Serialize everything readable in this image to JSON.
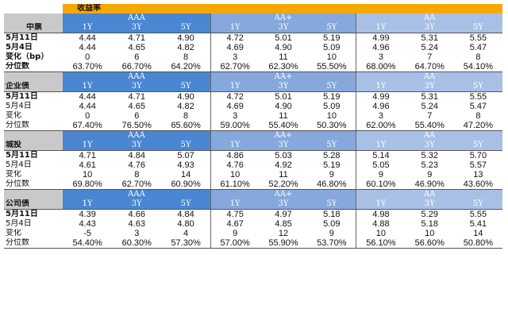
{
  "title": "收益率",
  "sections": [
    {
      "name": "中票",
      "grades": [
        "AAA",
        "AA+",
        "AA"
      ],
      "tenors": [
        "1Y",
        "3Y",
        "5Y"
      ],
      "rows": [
        {
          "label": "5月11日",
          "values": [
            "4.44",
            "4.71",
            "4.90",
            "4.72",
            "5.01",
            "5.19",
            "4.99",
            "5.31",
            "5.55"
          ]
        },
        {
          "label": "5月4日",
          "values": [
            "4.44",
            "4.65",
            "4.82",
            "4.69",
            "4.90",
            "5.09",
            "4.96",
            "5.24",
            "5.47"
          ]
        },
        {
          "label": "变化（bp）",
          "values": [
            "0",
            "6",
            "8",
            "3",
            "11",
            "10",
            "3",
            "7",
            "8"
          ]
        },
        {
          "label": "分位数",
          "values": [
            "63.70%",
            "66.70%",
            "64.20%",
            "62.70%",
            "62.30%",
            "55.50%",
            "68.00%",
            "64.70%",
            "54.10%"
          ]
        }
      ]
    },
    {
      "name": "企业债",
      "grades": [
        "AAA",
        "AA+",
        "AA"
      ],
      "tenors": [
        "1Y",
        "3Y",
        "5Y"
      ],
      "rows": [
        {
          "label": "5月11日",
          "values": [
            "4.44",
            "4.71",
            "4.90",
            "4.72",
            "5.01",
            "5.19",
            "4.99",
            "5.31",
            "5.55"
          ]
        },
        {
          "label": "5月4日",
          "values": [
            "4.44",
            "4.65",
            "4.82",
            "4.69",
            "4.90",
            "5.09",
            "4.96",
            "5.24",
            "5.47"
          ]
        },
        {
          "label": "变化",
          "values": [
            "0",
            "6",
            "8",
            "3",
            "11",
            "10",
            "3",
            "7",
            "8"
          ]
        },
        {
          "label": "分位数",
          "values": [
            "67.40%",
            "76.50%",
            "65.60%",
            "59.00%",
            "55.40%",
            "50.30%",
            "62.00%",
            "55.40%",
            "47.20%"
          ]
        }
      ]
    },
    {
      "name": "城投",
      "grades": [
        "AAA",
        "AA+",
        "AA"
      ],
      "tenors": [
        "1Y",
        "3Y",
        "5Y"
      ],
      "rows": [
        {
          "label": "5月11日",
          "values": [
            "4.71",
            "4.84",
            "5.07",
            "4.86",
            "5.03",
            "5.28",
            "5.14",
            "5.32",
            "5.70"
          ]
        },
        {
          "label": "5月4日",
          "values": [
            "4.61",
            "4.76",
            "4.93",
            "4.76",
            "4.92",
            "5.19",
            "5.05",
            "5.23",
            "5.57"
          ]
        },
        {
          "label": "变化",
          "values": [
            "10",
            "8",
            "14",
            "10",
            "11",
            "9",
            "9",
            "9",
            "13"
          ]
        },
        {
          "label": "分位数",
          "values": [
            "69.80%",
            "62.70%",
            "60.90%",
            "61.10%",
            "52.20%",
            "46.80%",
            "60.10%",
            "46.90%",
            "43.60%"
          ]
        }
      ]
    },
    {
      "name": "公司债",
      "grades": [
        "AAA",
        "AA+",
        "AA"
      ],
      "tenors": [
        "1Y",
        "3Y",
        "5Y"
      ],
      "rows": [
        {
          "label": "5月11日",
          "values": [
            "4.39",
            "4.66",
            "4.84",
            "4.75",
            "4.97",
            "5.18",
            "4.98",
            "5.29",
            "5.55"
          ]
        },
        {
          "label": "5月4日",
          "values": [
            "4.43",
            "4.63",
            "4.80",
            "4.67",
            "4.85",
            "5.09",
            "4.88",
            "5.18",
            "5.41"
          ]
        },
        {
          "label": "变化",
          "values": [
            "-5",
            "3",
            "4",
            "9",
            "12",
            "9",
            "10",
            "10",
            "14"
          ]
        },
        {
          "label": "分位数",
          "values": [
            "54.40%",
            "60.30%",
            "57.30%",
            "57.00%",
            "55.90%",
            "53.70%",
            "56.10%",
            "56.60%",
            "50.80%"
          ]
        }
      ]
    }
  ],
  "colors": {
    "title_bg": "#f7a800",
    "label_header_bg": "#c9c9c9",
    "grade_aaa": "#4a86d2",
    "grade_aaplus": "#86a8dc",
    "grade_aa": "#a9c0e6"
  }
}
